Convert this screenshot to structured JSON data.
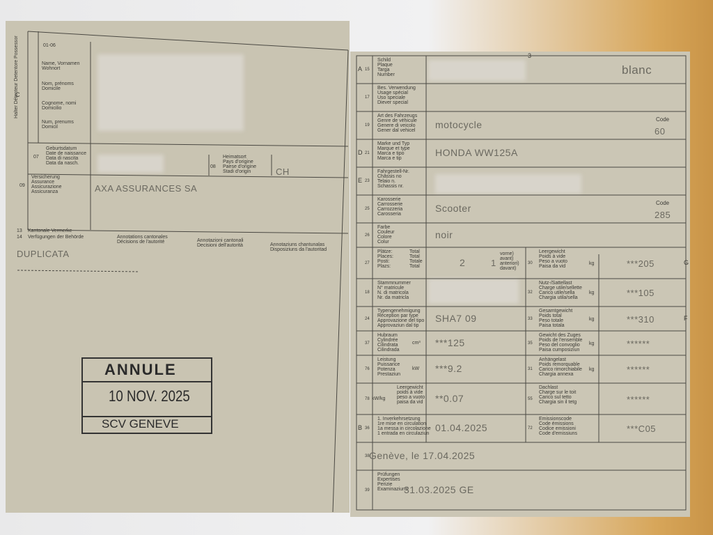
{
  "left_page": {
    "holder_title": "Halter Détenteur Detentore Possessor",
    "section_letter": "C",
    "field_01_06": "01-06",
    "name_labels": [
      "Name, Vornamen\nWohnort",
      "Nom, prénoms\nDomicile",
      "Cognome, nomi\nDomicilio",
      "Num, prenums\nDomicil"
    ],
    "birth": {
      "code": "07",
      "label": "Geburtsdatum\nDate de naissance\nData di nascita\nData da nasch."
    },
    "origin": {
      "code": "08",
      "label": "Heimatsort\nPays d'origine\nPaese d'origine\nStadi d'origin",
      "value": "CH"
    },
    "insurance": {
      "code": "09",
      "label": "Versicherung\nAssurance\nAssicurazione\nAssicuranza",
      "value": "AXA ASSURANCES SA"
    },
    "remarks": {
      "code_13": "13",
      "label_13": "Kantonale Vermerke",
      "code_14": "14",
      "label_14": "Verfügungen der Behörde"
    },
    "annotations": [
      "Annotations cantonales\nDécisions de l'autorité",
      "Annotazioni cantonali\nDecisioni dell'autorità",
      "Annotaziuns chantunalas\nDisposiziuns da l'autoritad"
    ],
    "note": "DUPLICATA",
    "stamp": {
      "status": "ANNULE",
      "date": "10 NOV. 2025",
      "office": "SCV GENEVE"
    }
  },
  "right_page": {
    "page_number": "3",
    "rows": [
      {
        "letter": "A",
        "code": "15",
        "label": "Schild\nPlaque\nTarga\nNumber",
        "value": "blanc"
      },
      {
        "code": "17",
        "label": "Bes. Verwendung\nUsage spécial\nUso speciale\nDiever special"
      },
      {
        "code": "19",
        "label": "Art des Fahrzeugs\nGenre de véhicule\nGenere di veicolo\nGener dal vehicel",
        "value": "motocycle",
        "code_label": "Code",
        "code_value": "60"
      },
      {
        "letter": "D",
        "code": "21",
        "label": "Marke und Typ\nMarque et type\nMarca e tipo\nMarca e tip",
        "value": "HONDA WW125A"
      },
      {
        "letter": "E",
        "code": "23",
        "label": "Fahrgestell-Nr.\nChâssis no\nTelaio n.\nSchassis nr."
      },
      {
        "code": "25",
        "label": "Karosserie\nCarrosserie\nCarrozzeria\nCarosseria",
        "value": "Scooter",
        "code_label": "Code",
        "code_value": "285"
      },
      {
        "code": "26",
        "label": "Farbe\nCouleur\nColore\nColur",
        "value": "noir"
      },
      {
        "code": "27",
        "label": "Plätze:\nPlaces:\nPosti:\nPlazs:",
        "total_label": "Total\nTotal\nTotale\nTotal",
        "value": "2",
        "front_value": "1",
        "front_label": "vorne)\navant)\nanteriori)\ndavant)"
      },
      {
        "code": "18",
        "label": "Stammnummer\nN° matricule\nN. di matricola\nNr. da matricla"
      },
      {
        "code": "24",
        "label": "Typengenehmigung\nRéception par type\nApprovazione del tipo\nApprovaziun dal tip",
        "value": "SHA7 09"
      },
      {
        "code": "37",
        "label": "Hubraum\nCylindrée\nCilindrata\nCilindrada",
        "unit": "cm³",
        "value": "***125"
      },
      {
        "code": "76",
        "label": "Leistung\nPuissance\nPotenza\nPrestaziun",
        "unit": "kW",
        "value": "***9.2"
      },
      {
        "code": "78",
        "unit": "kW/kg",
        "label": "Leergewicht\npoids à vide\npeso a vuoto\npaisa da vid",
        "value": "**0.07"
      },
      {
        "letter": "B",
        "code": "36",
        "label": "1. Inverkehrsetzung\n1re mise en circulation\n1a messa in circolazione\n1 entrada en circulaziun",
        "value": "01.04.2025"
      },
      {
        "code": "38",
        "value": "Genève, le 17.04.2025"
      },
      {
        "code": "39",
        "label": "Prüfungen\nExpertises\nPerizie\nExaminaziuns",
        "value": "31.03.2025 GE"
      }
    ],
    "weight_rows": [
      {
        "code": "30",
        "label": "Leergewicht\nPoids à vide\nPeso a vuoto\nPaisa da vid",
        "unit": "kg",
        "value": "***205",
        "letter": "G"
      },
      {
        "code": "32",
        "label": "Nutz-/Sattellast\nCharge utile/sellette\nCarico utile/sella\nChargia utila/sella",
        "unit": "kg",
        "value": "***105"
      },
      {
        "code": "33",
        "label": "Gesamtgewicht\nPoids total\nPeso totale\nPaisa totala",
        "unit": "kg",
        "value": "***310",
        "letter": "F"
      },
      {
        "code": "35",
        "label": "Gewicht des Zuges\nPoids de l'ensemble\nPeso del convoglio\nPaisa cumposiziun",
        "unit": "kg",
        "value": "******"
      },
      {
        "code": "31",
        "label": "Anhängelast\nPoids remorquable\nCarico rimorchiabile\nChargia annexa",
        "unit": "kg",
        "value": "******"
      },
      {
        "code": "55",
        "label": "Dachlast\nCharge sur le toit\nCarico sul tetto\nChargia sin il tetg",
        "value": "******"
      },
      {
        "code": "72",
        "label": "Emissionscode\nCode émissions\nCodice emissioni\nCode d'emissiuns",
        "value": "***C05"
      }
    ]
  }
}
